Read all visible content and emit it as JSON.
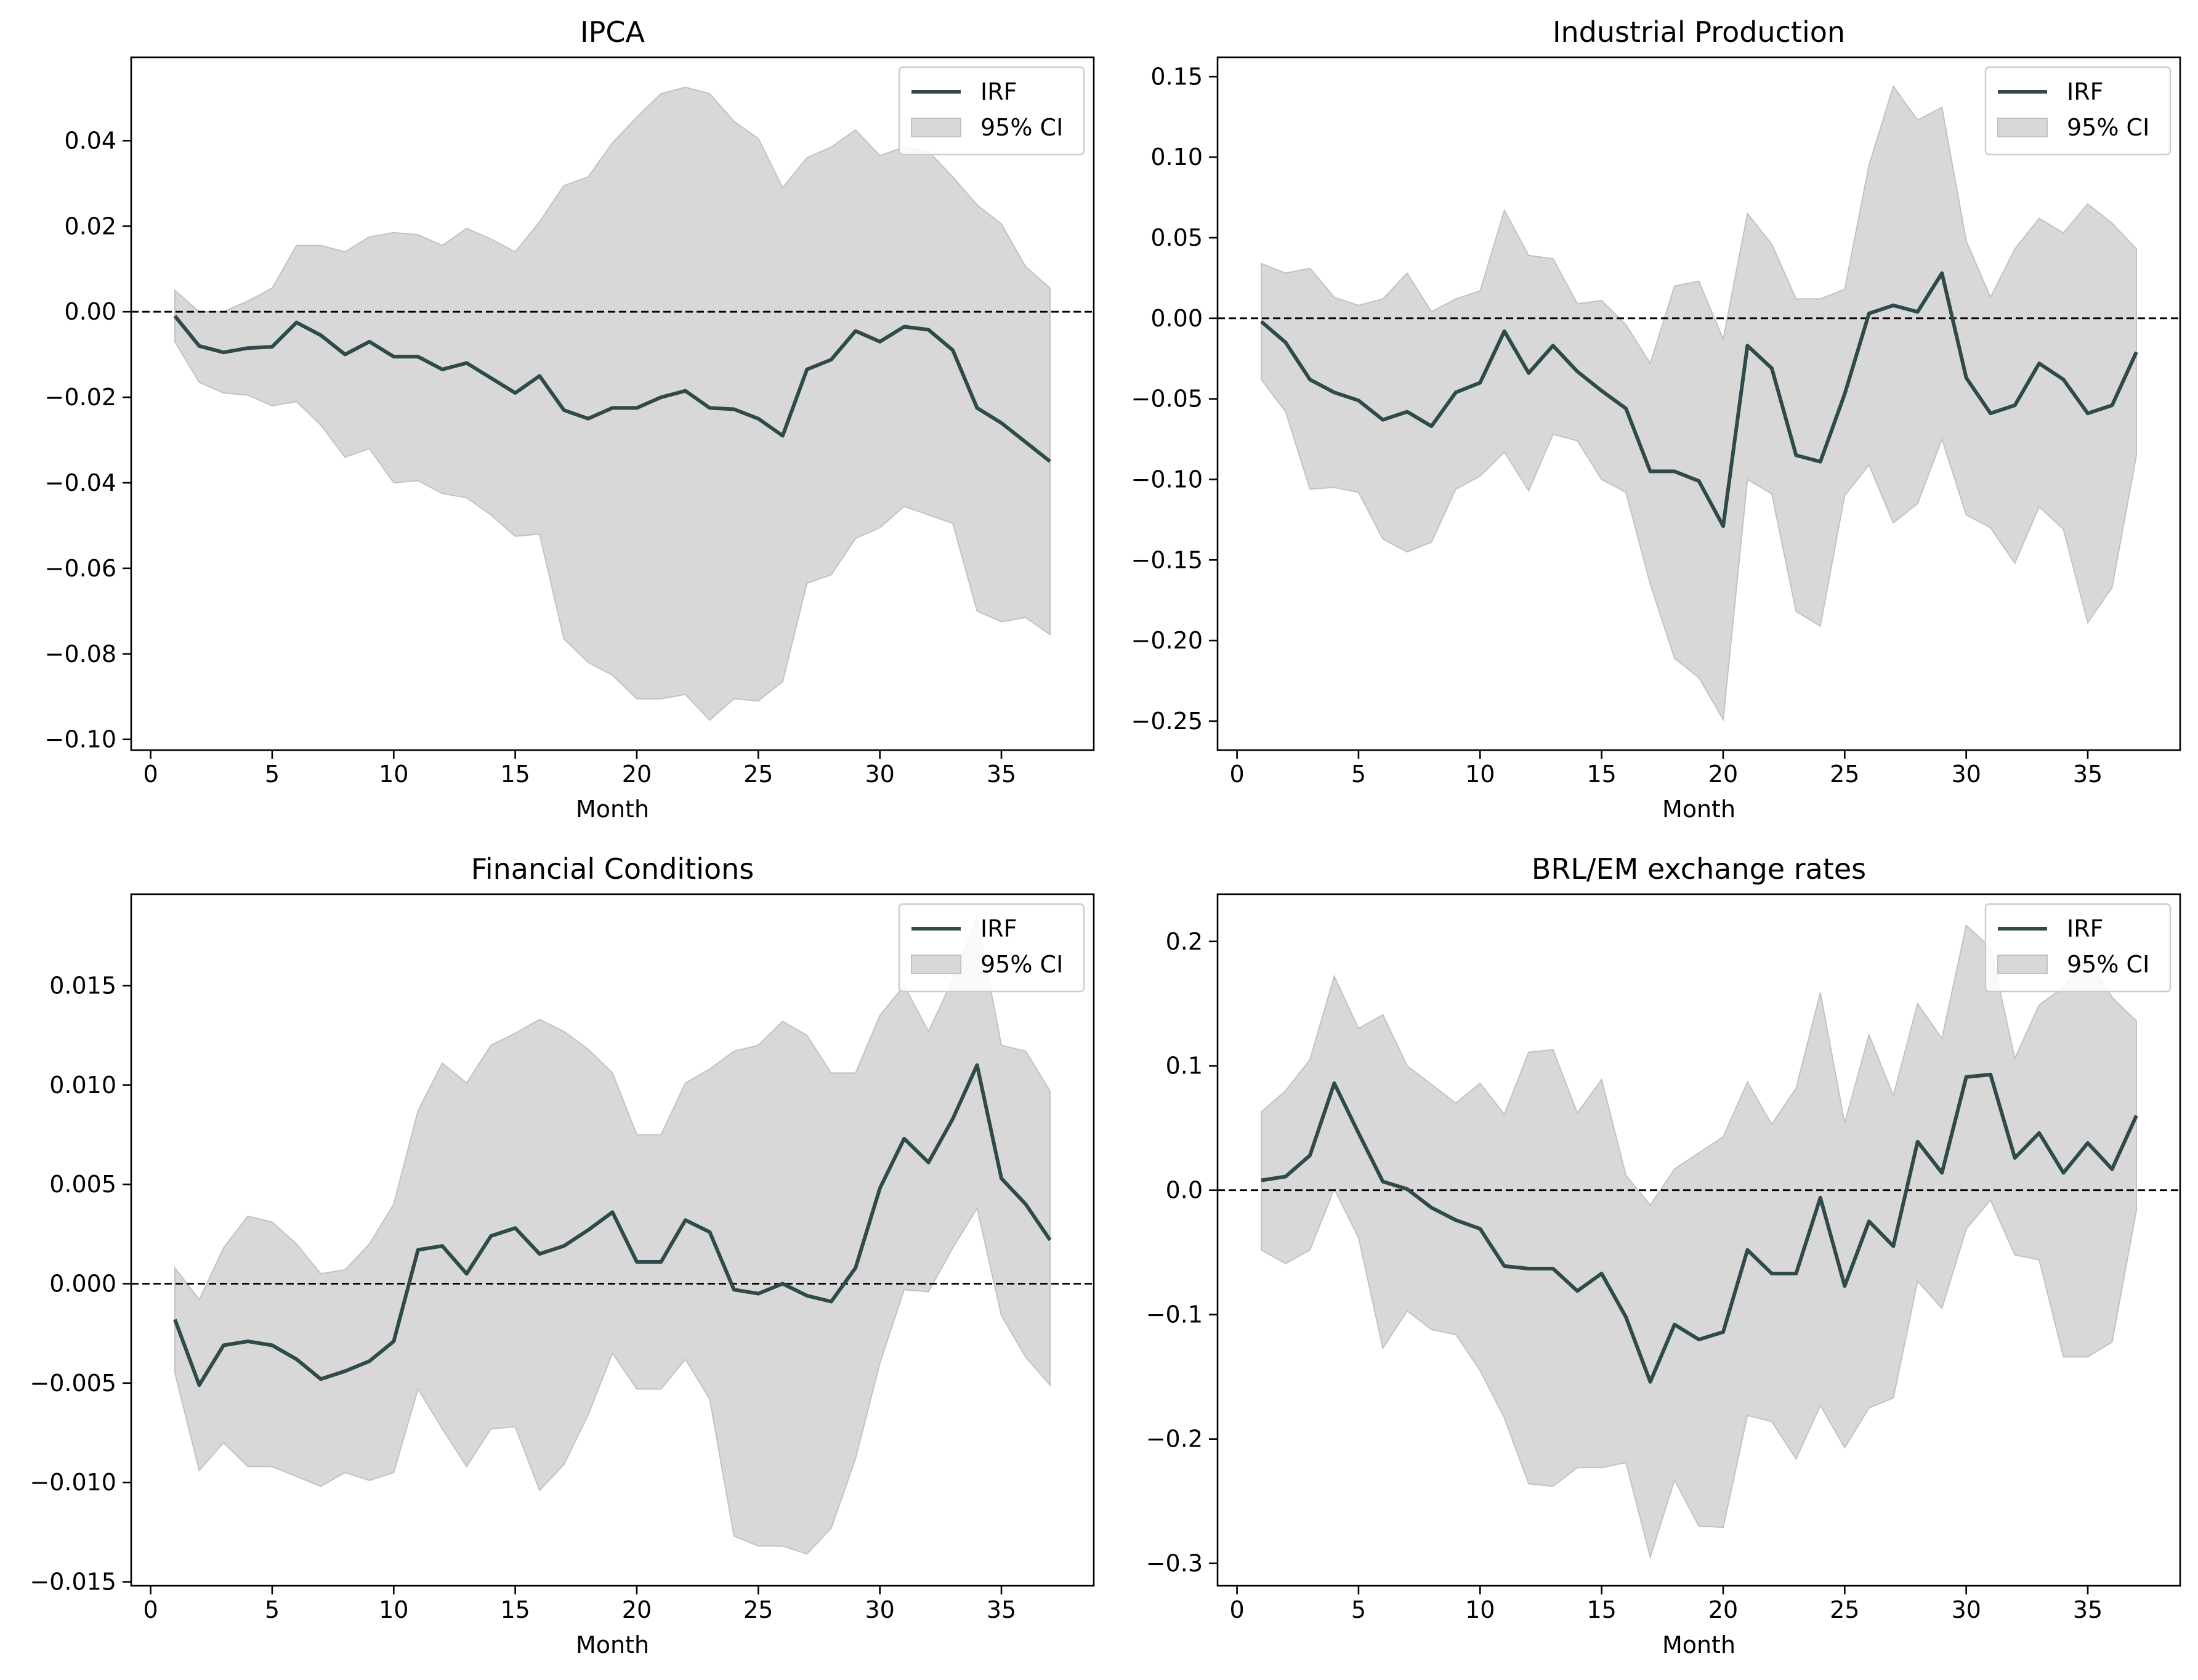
{
  "colors": {
    "irf": "#2f4a4a",
    "ci_fill": "#d8d8d8",
    "ci_edge": "#c2c2c2"
  },
  "chart_data": [
    {
      "type": "line",
      "title": "IPCA",
      "xlabel": "Month",
      "ylabel": "",
      "xlim": [
        -0.8,
        38.8
      ],
      "ylim": [
        -0.1025,
        0.0595
      ],
      "xticks": [
        0,
        5,
        10,
        15,
        20,
        25,
        30,
        35
      ],
      "yticks": [
        -0.1,
        -0.08,
        -0.06,
        -0.04,
        -0.02,
        0.0,
        0.02,
        0.04
      ],
      "ytick_labels": [
        "−0.10",
        "−0.08",
        "−0.06",
        "−0.04",
        "−0.02",
        "0.00",
        "0.02",
        "0.04"
      ],
      "zero_line": true,
      "legend": {
        "location": "top-right",
        "entries": [
          "IRF",
          "95% CI"
        ]
      },
      "x": [
        1,
        2,
        3,
        4,
        5,
        6,
        7,
        8,
        9,
        10,
        11,
        12,
        13,
        14,
        15,
        16,
        17,
        18,
        19,
        20,
        21,
        22,
        23,
        24,
        25,
        26,
        27,
        28,
        29,
        30,
        31,
        32,
        33,
        34,
        35,
        36,
        37
      ],
      "series": [
        {
          "name": "IRF",
          "values": [
            -0.001,
            -0.008,
            -0.0095,
            -0.0085,
            -0.0082,
            -0.0025,
            -0.0055,
            -0.01,
            -0.007,
            -0.0105,
            -0.0105,
            -0.0135,
            -0.012,
            -0.0155,
            -0.019,
            -0.015,
            -0.023,
            -0.025,
            -0.0225,
            -0.0225,
            -0.02,
            -0.0185,
            -0.0225,
            -0.0228,
            -0.025,
            -0.029,
            -0.0135,
            -0.0112,
            -0.0045,
            -0.007,
            -0.0035,
            -0.0042,
            -0.009,
            -0.0225,
            -0.026,
            -0.0305,
            -0.035
          ]
        },
        {
          "name": "95% CI",
          "lower": [
            -0.007,
            -0.0165,
            -0.019,
            -0.0195,
            -0.022,
            -0.021,
            -0.0265,
            -0.034,
            -0.032,
            -0.04,
            -0.0395,
            -0.0425,
            -0.0435,
            -0.0475,
            -0.0525,
            -0.052,
            -0.0765,
            -0.082,
            -0.085,
            -0.0905,
            -0.0905,
            -0.0895,
            -0.0955,
            -0.0905,
            -0.091,
            -0.0865,
            -0.0635,
            -0.0615,
            -0.053,
            -0.0505,
            -0.0455,
            -0.0475,
            -0.0495,
            -0.07,
            -0.0725,
            -0.0715,
            -0.0755
          ],
          "upper": [
            0.005,
            0.0,
            0.0,
            0.0025,
            0.0055,
            0.0155,
            0.0155,
            0.014,
            0.0175,
            0.0185,
            0.018,
            0.0155,
            0.0195,
            0.017,
            0.014,
            0.021,
            0.0295,
            0.0315,
            0.0395,
            0.0455,
            0.051,
            0.0525,
            0.051,
            0.0445,
            0.0405,
            0.029,
            0.036,
            0.0385,
            0.0425,
            0.0365,
            0.0385,
            0.0375,
            0.0315,
            0.025,
            0.0205,
            0.0105,
            0.0055
          ]
        }
      ]
    },
    {
      "type": "line",
      "title": "Industrial Production",
      "xlabel": "Month",
      "ylabel": "",
      "xlim": [
        -0.8,
        38.8
      ],
      "ylim": [
        -0.268,
        0.162
      ],
      "xticks": [
        0,
        5,
        10,
        15,
        20,
        25,
        30,
        35
      ],
      "yticks": [
        -0.25,
        -0.2,
        -0.15,
        -0.1,
        -0.05,
        0.0,
        0.05,
        0.1,
        0.15
      ],
      "ytick_labels": [
        "−0.25",
        "−0.20",
        "−0.15",
        "−0.10",
        "−0.05",
        "0.00",
        "0.05",
        "0.10",
        "0.15"
      ],
      "zero_line": true,
      "legend": {
        "location": "top-right",
        "entries": [
          "IRF",
          "95% CI"
        ]
      },
      "x": [
        1,
        2,
        3,
        4,
        5,
        6,
        7,
        8,
        9,
        10,
        11,
        12,
        13,
        14,
        15,
        16,
        17,
        18,
        19,
        20,
        21,
        22,
        23,
        24,
        25,
        26,
        27,
        28,
        29,
        30,
        31,
        32,
        33,
        34,
        35,
        36,
        37
      ],
      "series": [
        {
          "name": "IRF",
          "values": [
            -0.002,
            -0.015,
            -0.038,
            -0.046,
            -0.051,
            -0.063,
            -0.058,
            -0.067,
            -0.046,
            -0.04,
            -0.008,
            -0.034,
            -0.017,
            -0.033,
            -0.045,
            -0.056,
            -0.095,
            -0.095,
            -0.101,
            -0.129,
            -0.017,
            -0.031,
            -0.085,
            -0.089,
            -0.047,
            0.003,
            0.008,
            0.004,
            0.028,
            -0.037,
            -0.059,
            -0.054,
            -0.028,
            -0.038,
            -0.059,
            -0.054,
            -0.021
          ]
        },
        {
          "name": "95% CI",
          "lower": [
            -0.038,
            -0.058,
            -0.106,
            -0.105,
            -0.108,
            -0.137,
            -0.145,
            -0.139,
            -0.106,
            -0.098,
            -0.083,
            -0.107,
            -0.072,
            -0.076,
            -0.1,
            -0.108,
            -0.165,
            -0.211,
            -0.223,
            -0.249,
            -0.1,
            -0.109,
            -0.182,
            -0.191,
            -0.11,
            -0.091,
            -0.127,
            -0.115,
            -0.075,
            -0.122,
            -0.13,
            -0.152,
            -0.117,
            -0.131,
            -0.189,
            -0.167,
            -0.085
          ],
          "upper": [
            0.034,
            0.028,
            0.031,
            0.013,
            0.008,
            0.012,
            0.028,
            0.004,
            0.012,
            0.017,
            0.067,
            0.039,
            0.037,
            0.009,
            0.011,
            -0.004,
            -0.028,
            0.02,
            0.023,
            -0.013,
            0.065,
            0.046,
            0.012,
            0.012,
            0.018,
            0.095,
            0.144,
            0.123,
            0.131,
            0.048,
            0.013,
            0.043,
            0.062,
            0.053,
            0.071,
            0.059,
            0.043
          ]
        }
      ]
    },
    {
      "type": "line",
      "title": "Financial Conditions",
      "xlabel": "Month",
      "ylabel": "",
      "xlim": [
        -0.8,
        38.8
      ],
      "ylim": [
        -0.0152,
        0.0196
      ],
      "xticks": [
        0,
        5,
        10,
        15,
        20,
        25,
        30,
        35
      ],
      "yticks": [
        -0.015,
        -0.01,
        -0.005,
        0.0,
        0.005,
        0.01,
        0.015
      ],
      "ytick_labels": [
        "−0.015",
        "−0.010",
        "−0.005",
        "0.000",
        "0.005",
        "0.010",
        "0.015"
      ],
      "zero_line": true,
      "legend": {
        "location": "top-right",
        "entries": [
          "IRF",
          "95% CI"
        ]
      },
      "x": [
        1,
        2,
        3,
        4,
        5,
        6,
        7,
        8,
        9,
        10,
        11,
        12,
        13,
        14,
        15,
        16,
        17,
        18,
        19,
        20,
        21,
        22,
        23,
        24,
        25,
        26,
        27,
        28,
        29,
        30,
        31,
        32,
        33,
        34,
        35,
        36,
        37
      ],
      "series": [
        {
          "name": "IRF",
          "values": [
            -0.0018,
            -0.0051,
            -0.0031,
            -0.0029,
            -0.0031,
            -0.0038,
            -0.0048,
            -0.0044,
            -0.0039,
            -0.0029,
            0.0017,
            0.0019,
            0.0005,
            0.0024,
            0.0028,
            0.0015,
            0.0019,
            0.0027,
            0.0036,
            0.0011,
            0.0011,
            0.0032,
            0.0026,
            -0.0003,
            -0.0005,
            0.0,
            -0.0006,
            -0.0009,
            0.0008,
            0.0048,
            0.0073,
            0.0061,
            0.0083,
            0.011,
            0.0053,
            0.004,
            0.0022
          ]
        },
        {
          "name": "95% CI",
          "lower": [
            -0.0045,
            -0.0094,
            -0.008,
            -0.0092,
            -0.0092,
            -0.0097,
            -0.0102,
            -0.0095,
            -0.0099,
            -0.0095,
            -0.0053,
            -0.0073,
            -0.0092,
            -0.0073,
            -0.0072,
            -0.0104,
            -0.0091,
            -0.0066,
            -0.0035,
            -0.0053,
            -0.0053,
            -0.0038,
            -0.0058,
            -0.0127,
            -0.0132,
            -0.0132,
            -0.0136,
            -0.0123,
            -0.0088,
            -0.004,
            -0.0003,
            -0.0004,
            0.0018,
            0.0038,
            -0.0016,
            -0.0037,
            -0.0051
          ],
          "upper": [
            0.0008,
            -0.0008,
            0.0018,
            0.0034,
            0.0031,
            0.002,
            0.0005,
            0.0007,
            0.002,
            0.004,
            0.0087,
            0.0111,
            0.0101,
            0.012,
            0.0126,
            0.0133,
            0.0127,
            0.0118,
            0.0106,
            0.0075,
            0.0075,
            0.0101,
            0.0108,
            0.0117,
            0.012,
            0.0132,
            0.0125,
            0.0106,
            0.0106,
            0.0135,
            0.015,
            0.0127,
            0.0153,
            0.0184,
            0.012,
            0.0117,
            0.0097
          ]
        }
      ]
    },
    {
      "type": "line",
      "title": "BRL/EM exchange rates",
      "xlabel": "Month",
      "ylabel": "",
      "xlim": [
        -0.8,
        38.8
      ],
      "ylim": [
        -0.318,
        0.238
      ],
      "xticks": [
        0,
        5,
        10,
        15,
        20,
        25,
        30,
        35
      ],
      "yticks": [
        -0.3,
        -0.2,
        -0.1,
        0.0,
        0.1,
        0.2
      ],
      "ytick_labels": [
        "−0.3",
        "−0.2",
        "−0.1",
        "0.0",
        "0.1",
        "0.2"
      ],
      "zero_line": true,
      "legend": {
        "location": "top-right",
        "entries": [
          "IRF",
          "95% CI"
        ]
      },
      "x": [
        1,
        2,
        3,
        4,
        5,
        6,
        7,
        8,
        9,
        10,
        11,
        12,
        13,
        14,
        15,
        16,
        17,
        18,
        19,
        20,
        21,
        22,
        23,
        24,
        25,
        26,
        27,
        28,
        29,
        30,
        31,
        32,
        33,
        34,
        35,
        36,
        37
      ],
      "series": [
        {
          "name": "IRF",
          "values": [
            0.008,
            0.011,
            0.028,
            0.086,
            0.046,
            0.007,
            0.001,
            -0.014,
            -0.024,
            -0.031,
            -0.061,
            -0.063,
            -0.063,
            -0.081,
            -0.067,
            -0.102,
            -0.154,
            -0.108,
            -0.12,
            -0.114,
            -0.048,
            -0.067,
            -0.067,
            -0.006,
            -0.077,
            -0.025,
            -0.045,
            0.039,
            0.014,
            0.091,
            0.093,
            0.026,
            0.046,
            0.014,
            0.038,
            0.017,
            0.06
          ]
        },
        {
          "name": "95% CI",
          "lower": [
            -0.048,
            -0.059,
            -0.048,
            0.001,
            -0.038,
            -0.127,
            -0.097,
            -0.112,
            -0.116,
            -0.145,
            -0.183,
            -0.236,
            -0.238,
            -0.223,
            -0.223,
            -0.219,
            -0.295,
            -0.233,
            -0.27,
            -0.271,
            -0.181,
            -0.186,
            -0.216,
            -0.173,
            -0.207,
            -0.175,
            -0.167,
            -0.073,
            -0.095,
            -0.031,
            -0.008,
            -0.052,
            -0.056,
            -0.134,
            -0.134,
            -0.122,
            -0.016
          ],
          "upper": [
            0.063,
            0.08,
            0.105,
            0.172,
            0.13,
            0.141,
            0.1,
            0.085,
            0.07,
            0.086,
            0.061,
            0.111,
            0.113,
            0.062,
            0.089,
            0.012,
            -0.012,
            0.017,
            0.03,
            0.043,
            0.087,
            0.053,
            0.082,
            0.159,
            0.054,
            0.125,
            0.076,
            0.15,
            0.122,
            0.213,
            0.195,
            0.106,
            0.149,
            0.163,
            0.188,
            0.155,
            0.136
          ]
        }
      ]
    }
  ]
}
